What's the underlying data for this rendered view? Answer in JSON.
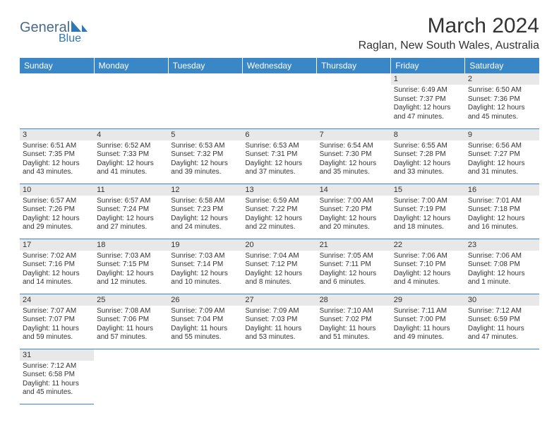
{
  "logo": {
    "general": "General",
    "blue": "Blue"
  },
  "title": "March 2024",
  "location": "Raglan, New South Wales, Australia",
  "colors": {
    "header_bg": "#3a87c7",
    "header_text": "#ffffff",
    "daynum_bg": "#e8e8e8",
    "text": "#333333",
    "border": "#3a87c7",
    "logo_general": "#4a6a8a",
    "logo_blue": "#2f78b8",
    "page_bg": "#ffffff"
  },
  "fonts": {
    "title_size_pt": 30,
    "location_size_pt": 16,
    "weekday_size_pt": 12,
    "daynum_size_pt": 11,
    "body_size_pt": 10,
    "family": "Arial"
  },
  "weekdays": [
    "Sunday",
    "Monday",
    "Tuesday",
    "Wednesday",
    "Thursday",
    "Friday",
    "Saturday"
  ],
  "first_weekday_index": 5,
  "days": [
    {
      "n": 1,
      "sunrise": "6:49 AM",
      "sunset": "7:37 PM",
      "dl_h": 12,
      "dl_m": 47
    },
    {
      "n": 2,
      "sunrise": "6:50 AM",
      "sunset": "7:36 PM",
      "dl_h": 12,
      "dl_m": 45
    },
    {
      "n": 3,
      "sunrise": "6:51 AM",
      "sunset": "7:35 PM",
      "dl_h": 12,
      "dl_m": 43
    },
    {
      "n": 4,
      "sunrise": "6:52 AM",
      "sunset": "7:33 PM",
      "dl_h": 12,
      "dl_m": 41
    },
    {
      "n": 5,
      "sunrise": "6:53 AM",
      "sunset": "7:32 PM",
      "dl_h": 12,
      "dl_m": 39
    },
    {
      "n": 6,
      "sunrise": "6:53 AM",
      "sunset": "7:31 PM",
      "dl_h": 12,
      "dl_m": 37
    },
    {
      "n": 7,
      "sunrise": "6:54 AM",
      "sunset": "7:30 PM",
      "dl_h": 12,
      "dl_m": 35
    },
    {
      "n": 8,
      "sunrise": "6:55 AM",
      "sunset": "7:28 PM",
      "dl_h": 12,
      "dl_m": 33
    },
    {
      "n": 9,
      "sunrise": "6:56 AM",
      "sunset": "7:27 PM",
      "dl_h": 12,
      "dl_m": 31
    },
    {
      "n": 10,
      "sunrise": "6:57 AM",
      "sunset": "7:26 PM",
      "dl_h": 12,
      "dl_m": 29
    },
    {
      "n": 11,
      "sunrise": "6:57 AM",
      "sunset": "7:24 PM",
      "dl_h": 12,
      "dl_m": 27
    },
    {
      "n": 12,
      "sunrise": "6:58 AM",
      "sunset": "7:23 PM",
      "dl_h": 12,
      "dl_m": 24
    },
    {
      "n": 13,
      "sunrise": "6:59 AM",
      "sunset": "7:22 PM",
      "dl_h": 12,
      "dl_m": 22
    },
    {
      "n": 14,
      "sunrise": "7:00 AM",
      "sunset": "7:20 PM",
      "dl_h": 12,
      "dl_m": 20
    },
    {
      "n": 15,
      "sunrise": "7:00 AM",
      "sunset": "7:19 PM",
      "dl_h": 12,
      "dl_m": 18
    },
    {
      "n": 16,
      "sunrise": "7:01 AM",
      "sunset": "7:18 PM",
      "dl_h": 12,
      "dl_m": 16
    },
    {
      "n": 17,
      "sunrise": "7:02 AM",
      "sunset": "7:16 PM",
      "dl_h": 12,
      "dl_m": 14
    },
    {
      "n": 18,
      "sunrise": "7:03 AM",
      "sunset": "7:15 PM",
      "dl_h": 12,
      "dl_m": 12
    },
    {
      "n": 19,
      "sunrise": "7:03 AM",
      "sunset": "7:14 PM",
      "dl_h": 12,
      "dl_m": 10
    },
    {
      "n": 20,
      "sunrise": "7:04 AM",
      "sunset": "7:12 PM",
      "dl_h": 12,
      "dl_m": 8
    },
    {
      "n": 21,
      "sunrise": "7:05 AM",
      "sunset": "7:11 PM",
      "dl_h": 12,
      "dl_m": 6
    },
    {
      "n": 22,
      "sunrise": "7:06 AM",
      "sunset": "7:10 PM",
      "dl_h": 12,
      "dl_m": 4
    },
    {
      "n": 23,
      "sunrise": "7:06 AM",
      "sunset": "7:08 PM",
      "dl_h": 12,
      "dl_m": 1
    },
    {
      "n": 24,
      "sunrise": "7:07 AM",
      "sunset": "7:07 PM",
      "dl_h": 11,
      "dl_m": 59
    },
    {
      "n": 25,
      "sunrise": "7:08 AM",
      "sunset": "7:06 PM",
      "dl_h": 11,
      "dl_m": 57
    },
    {
      "n": 26,
      "sunrise": "7:09 AM",
      "sunset": "7:04 PM",
      "dl_h": 11,
      "dl_m": 55
    },
    {
      "n": 27,
      "sunrise": "7:09 AM",
      "sunset": "7:03 PM",
      "dl_h": 11,
      "dl_m": 53
    },
    {
      "n": 28,
      "sunrise": "7:10 AM",
      "sunset": "7:02 PM",
      "dl_h": 11,
      "dl_m": 51
    },
    {
      "n": 29,
      "sunrise": "7:11 AM",
      "sunset": "7:00 PM",
      "dl_h": 11,
      "dl_m": 49
    },
    {
      "n": 30,
      "sunrise": "7:12 AM",
      "sunset": "6:59 PM",
      "dl_h": 11,
      "dl_m": 47
    },
    {
      "n": 31,
      "sunrise": "7:12 AM",
      "sunset": "6:58 PM",
      "dl_h": 11,
      "dl_m": 45
    }
  ],
  "labels": {
    "sunrise": "Sunrise:",
    "sunset": "Sunset:",
    "daylight": "Daylight:",
    "hours": "hours",
    "and": "and",
    "minutes_singular": "minute.",
    "minutes_plural": "minutes."
  }
}
